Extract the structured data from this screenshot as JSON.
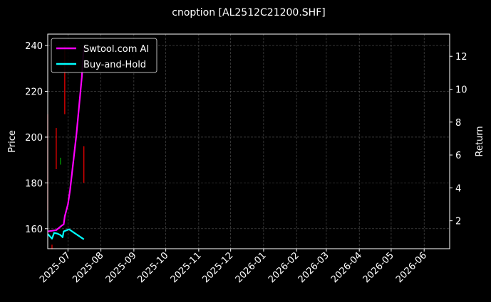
{
  "chart_data": {
    "type": "line",
    "title": "cnoption [AL2512C21200.SHF]",
    "ylabel": "Price",
    "y2label": "Return",
    "ylim": [
      151.25,
      245
    ],
    "y2lim": [
      0.3,
      13.35
    ],
    "xlim": [
      "2025-06-12",
      "2026-06-25"
    ],
    "grid": true,
    "legend_placement": "top-left",
    "x_ticks": [
      "2025-07",
      "2025-08",
      "2025-09",
      "2025-10",
      "2025-11",
      "2025-12",
      "2026-01",
      "2026-02",
      "2026-03",
      "2026-04",
      "2026-05",
      "2026-06"
    ],
    "x_tick_dates": [
      "2025-07-01",
      "2025-08-01",
      "2025-09-01",
      "2025-10-01",
      "2025-11-01",
      "2025-12-01",
      "2026-01-01",
      "2026-02-01",
      "2026-03-01",
      "2026-04-01",
      "2026-05-01",
      "2026-06-01"
    ],
    "y_ticks": [
      160,
      180,
      200,
      220,
      240
    ],
    "y2_ticks": [
      2,
      4,
      6,
      8,
      10,
      12
    ],
    "candles": [
      {
        "date": "2025-06-12",
        "low": 168,
        "high": 210,
        "color": "#ff0000"
      },
      {
        "date": "2025-06-16",
        "low": 151,
        "high": 153,
        "color": "#ff0000"
      },
      {
        "date": "2025-06-20",
        "low": 186,
        "high": 204,
        "color": "#ff0000"
      },
      {
        "date": "2025-06-24",
        "low": 188,
        "high": 191,
        "color": "#00aa00"
      },
      {
        "date": "2025-06-28",
        "low": 210,
        "high": 240,
        "color": "#ff0000"
      },
      {
        "date": "2025-07-16",
        "low": 180,
        "high": 196,
        "color": "#ff0000"
      }
    ],
    "series": [
      {
        "name": "Swtool.com AI",
        "color": "#ff00ff",
        "axis": "right",
        "x": [
          "2025-06-12",
          "2025-06-20",
          "2025-06-25",
          "2025-06-27",
          "2025-06-28",
          "2025-07-01",
          "2025-07-03",
          "2025-07-09",
          "2025-07-14",
          "2025-07-16"
        ],
        "values": [
          1.35,
          1.43,
          1.7,
          1.78,
          2.26,
          3.0,
          3.87,
          7.26,
          10.7,
          12.65
        ]
      },
      {
        "name": "Buy-and-Hold",
        "color": "#00ffff",
        "axis": "right",
        "x": [
          "2025-06-12",
          "2025-06-16",
          "2025-06-18",
          "2025-06-21",
          "2025-06-24",
          "2025-06-26",
          "2025-06-27",
          "2025-07-02",
          "2025-07-16"
        ],
        "values": [
          1.2,
          0.91,
          1.26,
          1.22,
          1.13,
          1.0,
          1.35,
          1.48,
          0.87
        ]
      }
    ]
  }
}
